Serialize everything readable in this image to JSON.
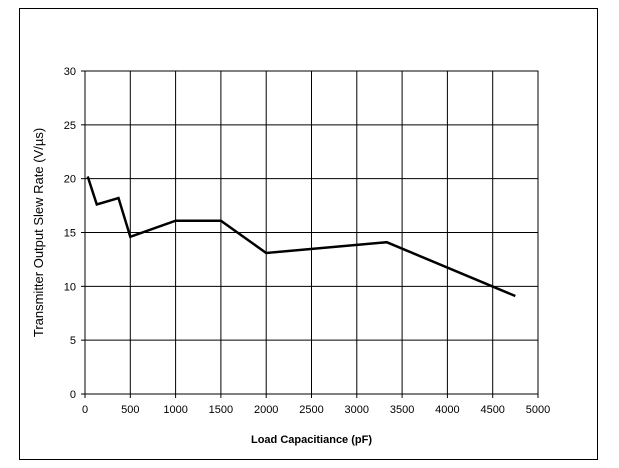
{
  "chart_data": {
    "type": "line",
    "title": "",
    "xlabel": "Load Capacitiance (pF)",
    "ylabel": "Transmitter Output Slew Rate (V/µs)",
    "xlim": [
      0,
      5000
    ],
    "ylim": [
      0,
      30
    ],
    "xticks": [
      0,
      500,
      1000,
      1500,
      2000,
      2500,
      3000,
      3500,
      4000,
      4500,
      5000
    ],
    "yticks": [
      0,
      5,
      10,
      15,
      20,
      25,
      30
    ],
    "grid": true,
    "series": [
      {
        "x": [
          30,
          130,
          370,
          500,
          1000,
          1500,
          2000,
          3330,
          4750
        ],
        "y": [
          20.2,
          17.6,
          18.2,
          14.6,
          16.1,
          16.1,
          13.1,
          14.1,
          9.1
        ]
      }
    ],
    "colors": {
      "line": "#000000",
      "grid": "#000000"
    }
  }
}
